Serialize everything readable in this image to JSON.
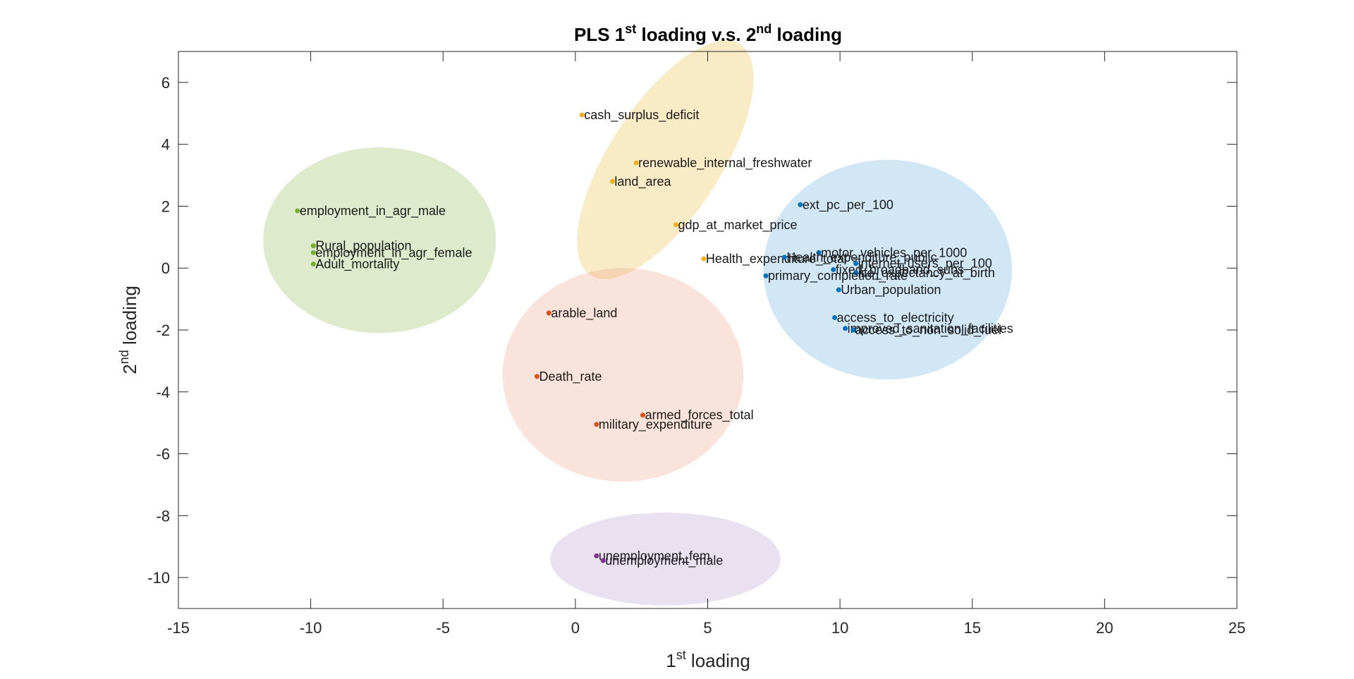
{
  "chart_data": {
    "type": "scatter",
    "title": {
      "prefix": "PLS 1",
      "sup1": "st",
      "middle": " loading v.s. 2",
      "sup2": "nd",
      "suffix": " loading"
    },
    "xlabel": {
      "prefix": "1",
      "sup": "st",
      "suffix": " loading"
    },
    "ylabel": {
      "prefix": "2",
      "sup": "nd",
      "suffix": " loading"
    },
    "xlim": [
      -15,
      25
    ],
    "ylim": [
      -11,
      7
    ],
    "xticks": [
      -15,
      -10,
      -5,
      0,
      5,
      10,
      15,
      20,
      25
    ],
    "yticks": [
      -10,
      -8,
      -6,
      -4,
      -2,
      0,
      2,
      4,
      6
    ],
    "grid": false,
    "clusters": [
      {
        "color": "#77ac30",
        "fill": "#77ac30",
        "cx": -7.4,
        "cy": 0.9,
        "rx": 4.4,
        "ry": 3.0,
        "angle": 0
      },
      {
        "color": "#edb120",
        "fill": "#edb120",
        "cx": 3.4,
        "cy": 3.5,
        "rx": 5.2,
        "ry": 1.8,
        "angle": -57
      },
      {
        "color": "#0072bd",
        "fill": "#4a9fd8",
        "cx": 11.8,
        "cy": -0.05,
        "rx": 4.7,
        "ry": 3.55,
        "angle": 0
      },
      {
        "color": "#d95319",
        "fill": "#e89070",
        "cx": 1.8,
        "cy": -3.45,
        "rx": 4.55,
        "ry": 3.45,
        "angle": 0
      },
      {
        "color": "#7e2f8e",
        "fill": "#a986c0",
        "cx": 3.4,
        "cy": -9.4,
        "rx": 4.35,
        "ry": 1.5,
        "angle": 0
      }
    ],
    "series": [
      {
        "color": "#77ac30",
        "points": [
          {
            "label": "employment_in_agr_male",
            "x": -10.5,
            "y": 1.85
          },
          {
            "label": "Rural_population",
            "x": -9.9,
            "y": 0.72
          },
          {
            "label": "employment_in_agr_female",
            "x": -9.9,
            "y": 0.5
          },
          {
            "label": "Adult_mortality",
            "x": -9.9,
            "y": 0.13
          }
        ]
      },
      {
        "color": "#edb120",
        "points": [
          {
            "label": "cash_surplus_deficit",
            "x": 0.25,
            "y": 4.95
          },
          {
            "label": "renewable_internal_freshwater",
            "x": 2.3,
            "y": 3.4
          },
          {
            "label": "land_area",
            "x": 1.4,
            "y": 2.8
          },
          {
            "label": "gdp_at_market_price",
            "x": 3.8,
            "y": 1.4
          },
          {
            "label": "Health_expenditure_total",
            "x": 4.85,
            "y": 0.3
          }
        ]
      },
      {
        "color": "#0072bd",
        "points": [
          {
            "label": "ext_pc_per_100",
            "x": 8.5,
            "y": 2.05
          },
          {
            "label": "motor_vehicles_per_1000",
            "x": 9.2,
            "y": 0.5
          },
          {
            "label": "Health_expenditure_public",
            "x": 7.9,
            "y": 0.35
          },
          {
            "label": "internet_users_per_100",
            "x": 10.6,
            "y": 0.15
          },
          {
            "label": "fixed_broadband_subs",
            "x": 9.75,
            "y": -0.05
          },
          {
            "label": "life_expectancy_at_birth",
            "x": 10.6,
            "y": -0.15
          },
          {
            "label": "primary_completion_rate",
            "x": 7.2,
            "y": -0.25
          },
          {
            "label": "Urban_population",
            "x": 9.95,
            "y": -0.7
          },
          {
            "label": "access_to_electricity",
            "x": 9.8,
            "y": -1.6
          },
          {
            "label": "improved_sanitation_facilities",
            "x": 10.2,
            "y": -1.95
          },
          {
            "label": "access_to_non_solid_fuel",
            "x": 10.5,
            "y": -2.0
          }
        ]
      },
      {
        "color": "#d95319",
        "points": [
          {
            "label": "arable_land",
            "x": -1.0,
            "y": -1.45
          },
          {
            "label": "Death_rate",
            "x": -1.45,
            "y": -3.5
          },
          {
            "label": "armed_forces_total",
            "x": 2.55,
            "y": -4.75
          },
          {
            "label": "military_expenditure",
            "x": 0.8,
            "y": -5.05
          }
        ]
      },
      {
        "color": "#7e2f8e",
        "points": [
          {
            "label": "unemployment_fem",
            "x": 0.8,
            "y": -9.3
          },
          {
            "label": "unemployment_male",
            "x": 1.05,
            "y": -9.45
          }
        ]
      }
    ]
  }
}
